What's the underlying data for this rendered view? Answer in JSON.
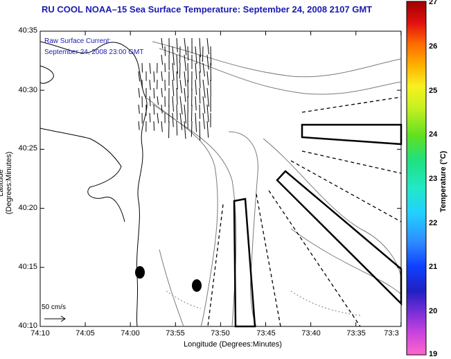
{
  "title": "RU COOL  NOAA–15  Sea Surface Temperature:  September 24, 2008 2107 GMT",
  "annotation": {
    "line1": "Raw Surface Current:",
    "line2": "September 24, 2008 23:00 GMT"
  },
  "axes": {
    "xlabel": "Longitude (Degrees:Minutes)",
    "ylabel": "Latitude (Degrees:Minutes)",
    "x_ticks": [
      "74:10",
      "74:05",
      "74:00",
      "73:55",
      "73:50",
      "73:45",
      "73:40",
      "73:35",
      "73:3"
    ],
    "y_ticks": [
      "40:35",
      "40:30",
      "40:25",
      "40:20",
      "40:15",
      "40:10"
    ]
  },
  "scale_label": "50 cm/s",
  "colorbar": {
    "label": "Temperature (°C)",
    "ticks": [
      "27",
      "26",
      "25",
      "24",
      "23",
      "22",
      "21",
      "20",
      "19"
    ],
    "min": 19,
    "max": 27
  }
}
